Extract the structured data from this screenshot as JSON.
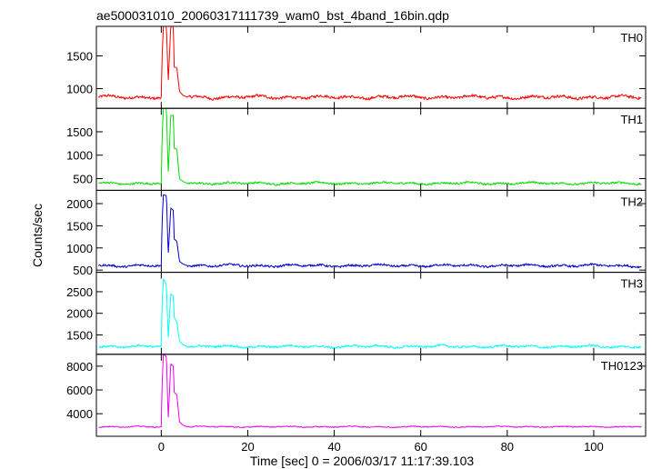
{
  "title": "ae500031010_20060317111739_wam0_bst_4band_16bin.qdp",
  "xlabel": "Time [sec] 0 = 2006/03/17 11:17:39.103",
  "ylabel": "Counts/sec",
  "chart_data": {
    "type": "line",
    "title": "ae500031010_20060317111739_wam0_bst_4band_16bin.qdp",
    "xlabel": "Time [sec] 0 = 2006/03/17 11:17:39.103",
    "ylabel": "Counts/sec",
    "xlim": [
      -15,
      112
    ],
    "xticks": [
      0,
      20,
      40,
      60,
      80,
      100
    ],
    "grid": false,
    "legend": "panel labels top-right",
    "panels": [
      {
        "name": "TH0",
        "color": "#ff0000",
        "ylim": [
          700,
          1950
        ],
        "yticks": [
          1000,
          1500
        ],
        "baseline": 870,
        "noise": 35,
        "burst": [
          [
            0,
            870
          ],
          [
            0.2,
            1500
          ],
          [
            0.5,
            1950
          ],
          [
            1.2,
            1950
          ],
          [
            1.6,
            1100
          ],
          [
            2.2,
            1950
          ],
          [
            2.8,
            1950
          ],
          [
            3.0,
            1330
          ],
          [
            3.6,
            1320
          ],
          [
            4.2,
            960
          ],
          [
            5,
            900
          ],
          [
            6,
            870
          ]
        ]
      },
      {
        "name": "TH1",
        "color": "#00dd00",
        "ylim": [
          250,
          2000
        ],
        "yticks": [
          500,
          1000,
          1500
        ],
        "baseline": 400,
        "noise": 35,
        "burst": [
          [
            0,
            400
          ],
          [
            0.2,
            1400
          ],
          [
            0.5,
            2000
          ],
          [
            1.2,
            2000
          ],
          [
            1.6,
            600
          ],
          [
            2.2,
            1850
          ],
          [
            2.8,
            1850
          ],
          [
            3.0,
            1150
          ],
          [
            3.6,
            1130
          ],
          [
            4.2,
            500
          ],
          [
            5,
            440
          ],
          [
            6,
            400
          ]
        ]
      },
      {
        "name": "TH2",
        "color": "#0000cc",
        "ylim": [
          450,
          2300
        ],
        "yticks": [
          500,
          1000,
          1500,
          2000
        ],
        "baseline": 600,
        "noise": 40,
        "burst": [
          [
            0,
            600
          ],
          [
            0.2,
            1600
          ],
          [
            0.5,
            2200
          ],
          [
            1.2,
            2180
          ],
          [
            1.6,
            850
          ],
          [
            2.2,
            1900
          ],
          [
            2.8,
            1850
          ],
          [
            3.0,
            1200
          ],
          [
            3.6,
            1150
          ],
          [
            4.2,
            700
          ],
          [
            5,
            640
          ],
          [
            6,
            600
          ]
        ]
      },
      {
        "name": "TH3",
        "color": "#00ffff",
        "ylim": [
          1050,
          2950
        ],
        "yticks": [
          1500,
          2000,
          2500
        ],
        "baseline": 1230,
        "noise": 40,
        "burst": [
          [
            0,
            1230
          ],
          [
            0.2,
            2200
          ],
          [
            0.5,
            2800
          ],
          [
            1.2,
            2650
          ],
          [
            1.6,
            1400
          ],
          [
            2.2,
            2450
          ],
          [
            2.8,
            2400
          ],
          [
            3.0,
            1900
          ],
          [
            3.6,
            1800
          ],
          [
            4.2,
            1350
          ],
          [
            5,
            1280
          ],
          [
            6,
            1230
          ]
        ]
      },
      {
        "name": "TH0123",
        "color": "#ee00ee",
        "ylim": [
          2100,
          9000
        ],
        "yticks": [
          4000,
          6000,
          8000
        ],
        "baseline": 2900,
        "noise": 70,
        "burst": [
          [
            0,
            2900
          ],
          [
            0.2,
            6500
          ],
          [
            0.5,
            9000
          ],
          [
            1.2,
            8800
          ],
          [
            1.6,
            3500
          ],
          [
            2.2,
            8200
          ],
          [
            2.8,
            8000
          ],
          [
            3.0,
            5800
          ],
          [
            3.6,
            5600
          ],
          [
            4.2,
            3300
          ],
          [
            5,
            3050
          ],
          [
            6,
            2900
          ]
        ]
      }
    ]
  }
}
